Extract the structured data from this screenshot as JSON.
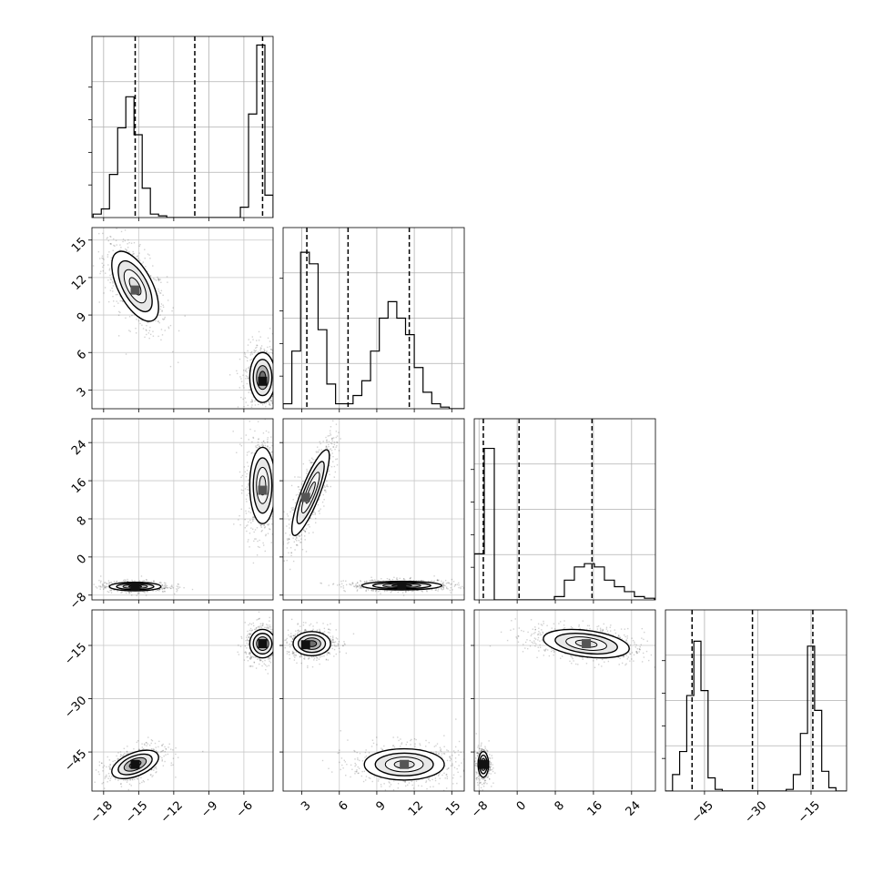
{
  "chart_data": {
    "type": "corner",
    "title": "",
    "grid": true,
    "parameters": [
      {
        "index": 0,
        "range": [
          -19,
          -3.5
        ],
        "ticks": [
          -18,
          -15,
          -12,
          -9,
          -6
        ],
        "quantiles": [
          -15.3,
          -10.2,
          -4.4
        ]
      },
      {
        "index": 1,
        "range": [
          1.5,
          16
        ],
        "ticks": [
          3,
          6,
          9,
          12,
          15
        ],
        "quantiles": [
          3.4,
          6.7,
          11.6
        ]
      },
      {
        "index": 2,
        "range": [
          -9,
          29
        ],
        "ticks": [
          -8,
          0,
          8,
          16,
          24
        ],
        "quantiles": [
          -7.1,
          0.4,
          15.7
        ]
      },
      {
        "index": 3,
        "range": [
          -56,
          -5
        ],
        "ticks": [
          -45,
          -30,
          -15
        ],
        "quantiles": [
          -48.5,
          -31.5,
          -14.5
        ]
      }
    ],
    "histograms": [
      {
        "param": 0,
        "bin_width": 0.7,
        "bin_starts": [
          -18.9,
          -18.2,
          -17.5,
          -16.8,
          -16.1,
          -15.4,
          -14.7,
          -14.0,
          -13.3,
          -12.6,
          -11.9,
          -11.2,
          -10.5,
          -9.8,
          -9.1,
          -8.4,
          -7.7,
          -7.0,
          -6.3,
          -5.6,
          -4.9,
          -4.2
        ],
        "counts": [
          0.02,
          0.05,
          0.25,
          0.52,
          0.7,
          0.48,
          0.17,
          0.02,
          0.01,
          0,
          0,
          0,
          0,
          0,
          0,
          0,
          0,
          0,
          0.06,
          0.6,
          1.0,
          0.13
        ]
      },
      {
        "param": 1,
        "bin_width": 0.7,
        "bin_starts": [
          1.5,
          2.2,
          2.9,
          3.6,
          4.3,
          5.0,
          5.7,
          6.4,
          7.1,
          7.8,
          8.5,
          9.2,
          9.9,
          10.6,
          11.3,
          12.0,
          12.7,
          13.4,
          14.1,
          14.8,
          15.5
        ],
        "counts": [
          0.03,
          0.35,
          0.95,
          0.88,
          0.48,
          0.15,
          0.03,
          0.03,
          0.08,
          0.17,
          0.35,
          0.55,
          0.65,
          0.55,
          0.45,
          0.25,
          0.1,
          0.03,
          0.01,
          0,
          0
        ],
        "ylim": [
          0,
          1.1
        ]
      },
      {
        "param": 2,
        "bin_width": 2.1,
        "bin_starts": [
          -9,
          -6.9,
          -4.8,
          -2.7,
          -0.6,
          1.5,
          3.6,
          5.7,
          7.8,
          9.9,
          12.0,
          14.1,
          16.2,
          18.3,
          20.4,
          22.5,
          24.6,
          26.7
        ],
        "counts": [
          0.28,
          0.92,
          0,
          0,
          0,
          0,
          0,
          0,
          0.02,
          0.12,
          0.2,
          0.22,
          0.2,
          0.12,
          0.08,
          0.05,
          0.02,
          0.01
        ],
        "ylim": [
          0,
          1.1
        ]
      },
      {
        "param": 3,
        "bin_width": 2.0,
        "bin_starts": [
          -56,
          -54,
          -52,
          -50,
          -48,
          -46,
          -44,
          -42,
          -40,
          -38,
          -36,
          -34,
          -32,
          -30,
          -28,
          -26,
          -24,
          -22,
          -20,
          -18,
          -16,
          -14,
          -12,
          -10,
          -8,
          -6
        ],
        "counts": [
          0,
          0.1,
          0.24,
          0.58,
          0.91,
          0.61,
          0.08,
          0.01,
          0,
          0,
          0,
          0,
          0,
          0,
          0,
          0,
          0,
          0.01,
          0.1,
          0.35,
          0.88,
          0.49,
          0.12,
          0.02,
          0,
          0
        ],
        "ylim": [
          0,
          1.1
        ]
      }
    ],
    "scatter_panels": [
      {
        "x_param": 0,
        "y_param": 1,
        "modes": [
          {
            "center": [
              -15.3,
              11.3
            ],
            "sigma": [
              1.0,
              1.4
            ],
            "rho": -0.6,
            "density": 0.8,
            "n": 650,
            "core": [
              -15.3,
              11.0
            ]
          },
          {
            "center": [
              -4.4,
              4.0
            ],
            "sigma": [
              0.55,
              1.0
            ],
            "rho": 0.0,
            "density": 1.0,
            "n": 650,
            "core": [
              -4.4,
              3.7
            ]
          }
        ]
      },
      {
        "x_param": 0,
        "y_param": 2,
        "modes": [
          {
            "center": [
              -4.4,
              15.0
            ],
            "sigma": [
              0.55,
              4.0
            ],
            "rho": 0.0,
            "density": 0.8,
            "n": 750,
            "core": [
              -4.4,
              14.0
            ]
          },
          {
            "center": [
              -15.3,
              -6.2
            ],
            "sigma": [
              1.1,
              0.45
            ],
            "rho": 0.0,
            "density": 1.0,
            "n": 550,
            "core": [
              -15.3,
              -6.2
            ]
          }
        ]
      },
      {
        "x_param": 0,
        "y_param": 3,
        "modes": [
          {
            "center": [
              -4.4,
              -14.5
            ],
            "sigma": [
              0.55,
              2.0
            ],
            "rho": 0.0,
            "density": 1.0,
            "n": 550,
            "core": [
              -4.4,
              -14.5
            ]
          },
          {
            "center": [
              -15.3,
              -48.5
            ],
            "sigma": [
              1.0,
              2.0
            ],
            "rho": 0.5,
            "density": 1.0,
            "n": 550,
            "core": [
              -15.3,
              -48.5
            ]
          }
        ]
      },
      {
        "x_param": 1,
        "y_param": 2,
        "modes": [
          {
            "center": [
              3.7,
              13.5
            ],
            "sigma": [
              0.75,
              4.5
            ],
            "rho": 0.85,
            "density": 0.9,
            "n": 700,
            "core": [
              3.3,
              12.5
            ]
          },
          {
            "center": [
              11.0,
              -6.0
            ],
            "sigma": [
              1.6,
              0.45
            ],
            "rho": 0.0,
            "density": 1.0,
            "n": 650,
            "core": [
              11.0,
              -6.0
            ]
          }
        ]
      },
      {
        "x_param": 1,
        "y_param": 3,
        "modes": [
          {
            "center": [
              3.8,
              -14.5
            ],
            "sigma": [
              0.75,
              1.7
            ],
            "rho": 0.0,
            "density": 1.0,
            "n": 600,
            "core": [
              3.3,
              -14.8
            ]
          },
          {
            "center": [
              11.2,
              -48.5
            ],
            "sigma": [
              1.6,
              2.2
            ],
            "rho": 0.0,
            "density": 0.9,
            "n": 650,
            "core": [
              11.2,
              -48.5
            ]
          }
        ]
      },
      {
        "x_param": 2,
        "y_param": 3,
        "modes": [
          {
            "center": [
              14.5,
              -14.5
            ],
            "sigma": [
              4.5,
              2.0
            ],
            "rho": -0.35,
            "density": 0.8,
            "n": 700,
            "core": [
              14.5,
              -14.5
            ]
          },
          {
            "center": [
              -7.1,
              -48.5
            ],
            "sigma": [
              0.55,
              1.8
            ],
            "rho": 0.0,
            "density": 1.0,
            "n": 500,
            "core": [
              -7.1,
              -48.5
            ]
          }
        ]
      }
    ]
  }
}
